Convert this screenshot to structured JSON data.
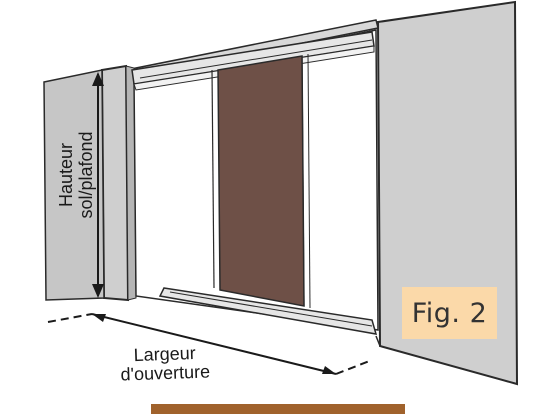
{
  "diagram": {
    "height_label_line1": "Hauteur",
    "height_label_line2": "sol/plafond",
    "width_label_line1": "Largeur",
    "width_label_line2": "d'ouverture",
    "figure_label": "Fig. 2",
    "colors": {
      "wall": "#cfcfcf",
      "wall_shadow": "#b5b5b5",
      "door_panel": "#6e5047",
      "outline": "#2a2a2a",
      "rail": "#e6e6e6",
      "fig_label_bg": "#fbd9a9",
      "bottom_strip": "#a0622c"
    }
  }
}
